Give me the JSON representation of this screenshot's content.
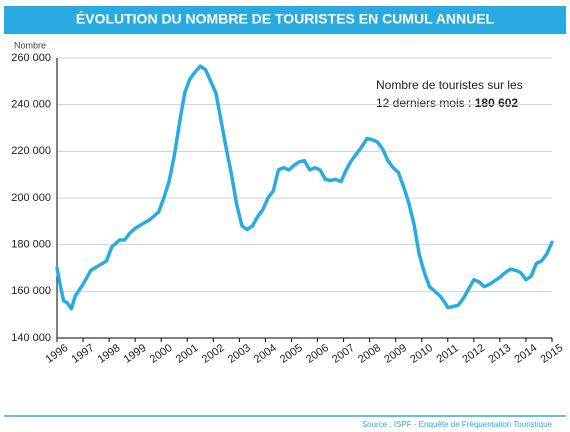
{
  "chart_data": {
    "type": "line",
    "title": "ÉVOLUTION DU NOMBRE DE TOURISTES EN CUMUL ANNUEL",
    "y_label": "Nombre",
    "annotation_lines": [
      "Nombre de touristes sur les",
      "12 derniers mois :"
    ],
    "annotation_value": "180 602",
    "source": "Source : ISPF - Enquête de Fréquentation Touristique",
    "color": "#29abe2",
    "grid": true,
    "xlim": [
      1996,
      2015
    ],
    "xticks": [
      1996,
      1997,
      1998,
      1999,
      2000,
      2001,
      2002,
      2003,
      2004,
      2005,
      2006,
      2007,
      2008,
      2009,
      2010,
      2011,
      2012,
      2013,
      2014,
      2015
    ],
    "ylim": [
      140000,
      260000
    ],
    "yticks": [
      {
        "value": 140000,
        "label": "140 000"
      },
      {
        "value": 160000,
        "label": "160 000"
      },
      {
        "value": 180000,
        "label": "180 000"
      },
      {
        "value": 200000,
        "label": "200 000"
      },
      {
        "value": 220000,
        "label": "220 000"
      },
      {
        "value": 240000,
        "label": "240 000"
      },
      {
        "value": 260000,
        "label": "260 000"
      }
    ],
    "x": [
      1996.0,
      1996.1,
      1996.25,
      1996.4,
      1996.55,
      1996.7,
      1997.0,
      1997.3,
      1997.6,
      1997.9,
      1998.1,
      1998.4,
      1998.6,
      1998.8,
      1999.0,
      1999.3,
      1999.6,
      1999.9,
      2000.1,
      2000.3,
      2000.5,
      2000.7,
      2000.9,
      2001.1,
      2001.3,
      2001.5,
      2001.7,
      2001.9,
      2002.1,
      2002.3,
      2002.5,
      2002.7,
      2002.9,
      2003.1,
      2003.3,
      2003.5,
      2003.7,
      2003.9,
      2004.1,
      2004.3,
      2004.5,
      2004.7,
      2004.9,
      2005.1,
      2005.3,
      2005.5,
      2005.7,
      2005.9,
      2006.1,
      2006.3,
      2006.5,
      2006.7,
      2006.9,
      2007.1,
      2007.3,
      2007.5,
      2007.7,
      2007.9,
      2008.1,
      2008.3,
      2008.5,
      2008.7,
      2008.9,
      2009.1,
      2009.3,
      2009.5,
      2009.7,
      2009.9,
      2010.1,
      2010.3,
      2010.5,
      2010.7,
      2010.9,
      2011.0,
      2011.2,
      2011.4,
      2011.6,
      2011.8,
      2012.0,
      2012.2,
      2012.4,
      2012.6,
      2012.8,
      2013.0,
      2013.2,
      2013.4,
      2013.6,
      2013.8,
      2014.0,
      2014.2,
      2014.4,
      2014.6,
      2014.8,
      2015.0
    ],
    "values": [
      170000,
      164000,
      156000,
      155000,
      152500,
      158000,
      163000,
      169000,
      171000,
      173000,
      179000,
      182000,
      182000,
      185000,
      187000,
      189000,
      191000,
      194000,
      200000,
      207000,
      218000,
      232000,
      245000,
      251000,
      254000,
      256500,
      255000,
      250000,
      245000,
      233000,
      221000,
      210000,
      197000,
      188000,
      186500,
      188000,
      192000,
      195000,
      200000,
      203000,
      212000,
      213000,
      212000,
      214000,
      215500,
      216000,
      212000,
      213000,
      212000,
      208000,
      207500,
      208000,
      207000,
      212000,
      216000,
      219000,
      222000,
      225500,
      225000,
      224000,
      221000,
      216000,
      213000,
      211000,
      205000,
      198000,
      189000,
      176000,
      168000,
      162000,
      160000,
      158000,
      155000,
      153000,
      153500,
      154000,
      157000,
      161000,
      165000,
      164000,
      162000,
      163000,
      164500,
      166000,
      168000,
      169500,
      169000,
      168000,
      165000,
      166500,
      172000,
      173000,
      176000,
      181000
    ]
  }
}
